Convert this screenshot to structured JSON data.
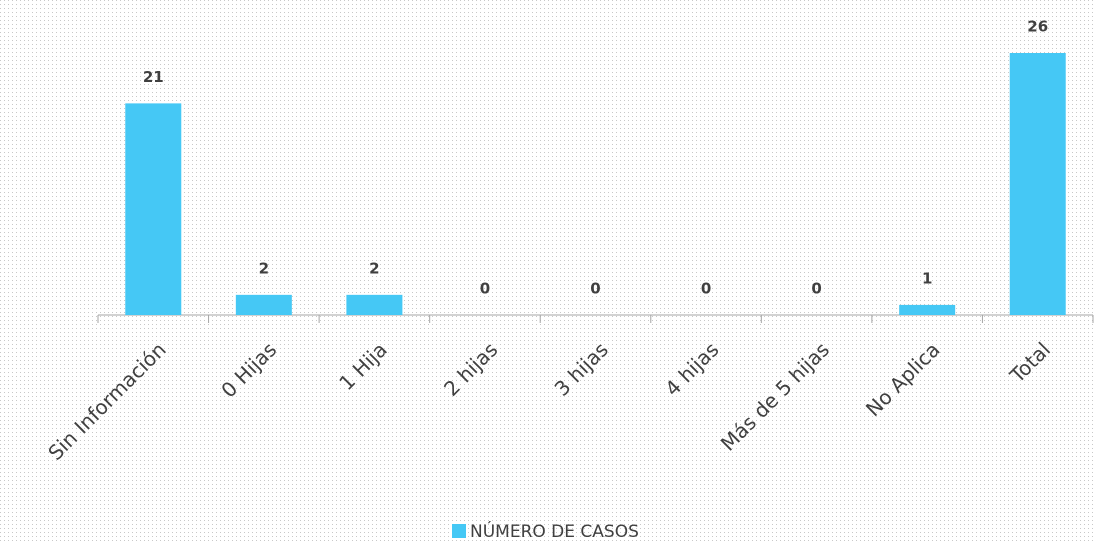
{
  "chart_data": {
    "type": "bar",
    "categories": [
      "Sin Información",
      "0 Hijas",
      "1 Hija",
      "2 hijas",
      "3 hijas",
      "4 hijas",
      "Más de 5 hijas",
      "No Aplica",
      "Total"
    ],
    "series": [
      {
        "name": "NÚMERO DE CASOS",
        "color": "#45c8f5",
        "values": [
          21,
          2,
          2,
          0,
          0,
          0,
          0,
          1,
          26
        ]
      }
    ],
    "legend": "bottom"
  }
}
